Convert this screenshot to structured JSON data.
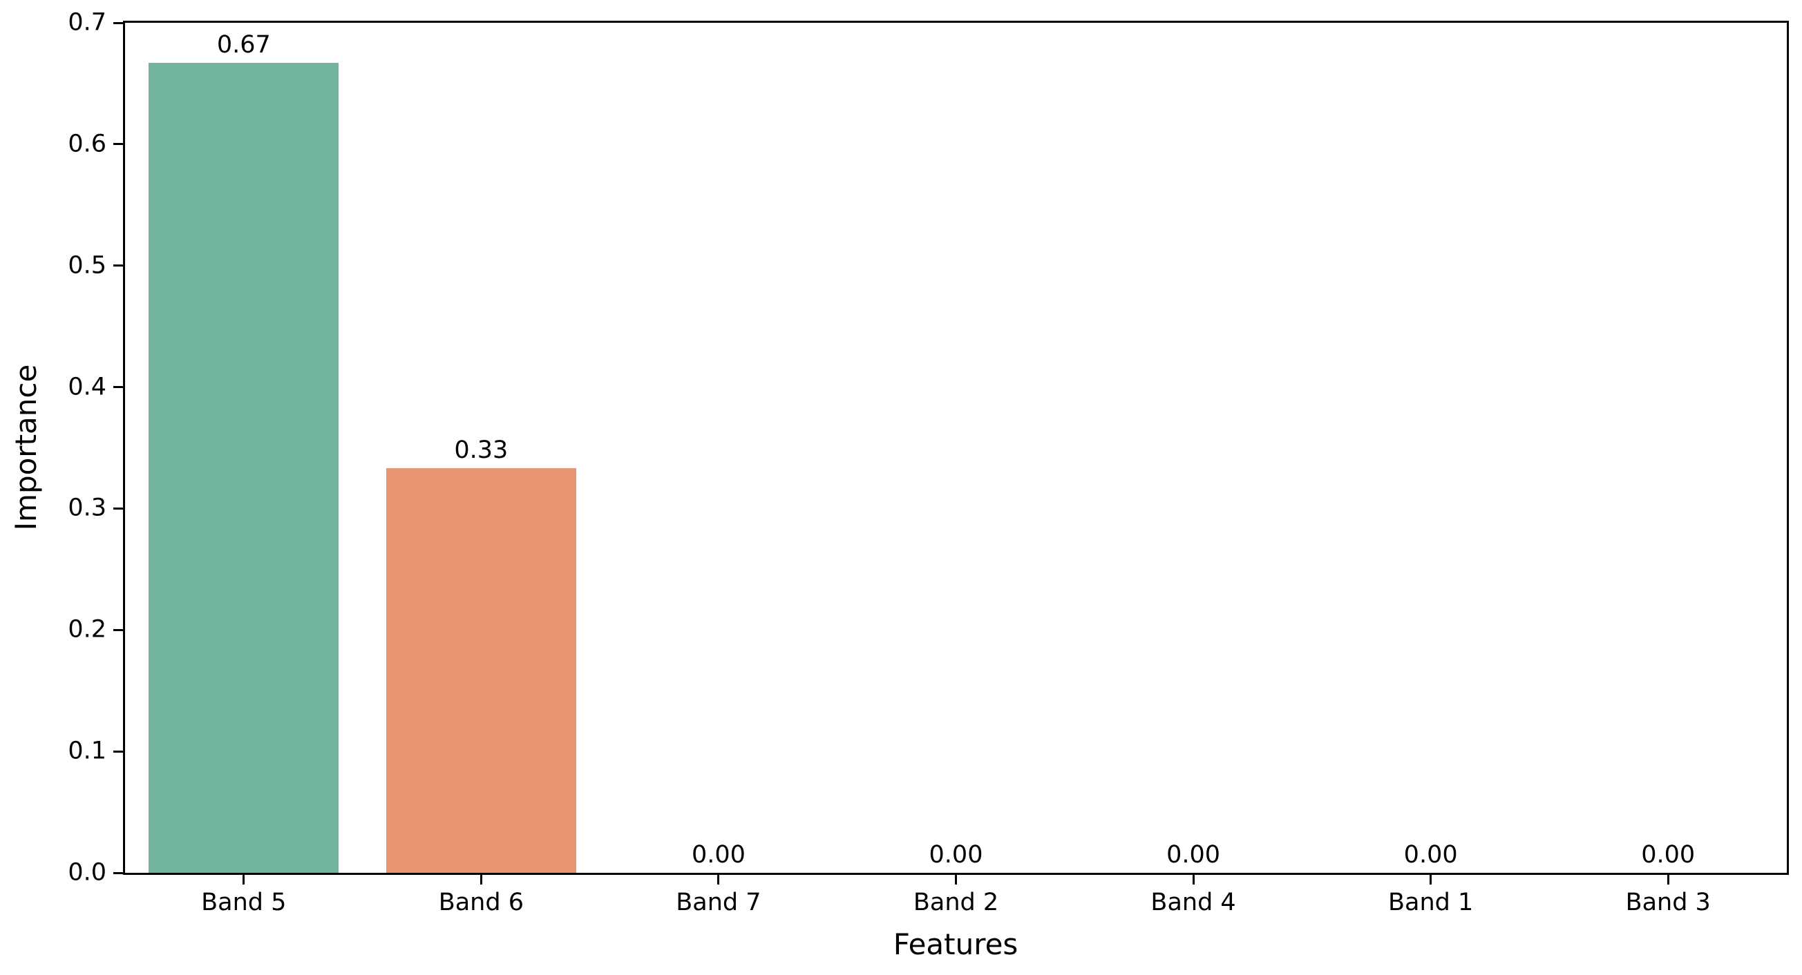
{
  "chart_data": {
    "type": "bar",
    "title": "",
    "xlabel": "Features",
    "ylabel": "Importance",
    "categories": [
      "Band 5",
      "Band 6",
      "Band 7",
      "Band 2",
      "Band 4",
      "Band 1",
      "Band 3"
    ],
    "values": [
      0.667,
      0.333,
      0.0,
      0.0,
      0.0,
      0.0,
      0.0
    ],
    "value_labels": [
      "0.67",
      "0.33",
      "0.00",
      "0.00",
      "0.00",
      "0.00",
      "0.00"
    ],
    "bar_colors": [
      "#73b4a1",
      "#e89573",
      null,
      null,
      null,
      null,
      null
    ],
    "ylim": [
      0.0,
      0.7
    ],
    "yticks": [
      0.0,
      0.1,
      0.2,
      0.3,
      0.4,
      0.5,
      0.6,
      0.7
    ],
    "ytick_labels": [
      "0.0",
      "0.1",
      "0.2",
      "0.3",
      "0.4",
      "0.5",
      "0.6",
      "0.7"
    ],
    "layout": {
      "grid": false,
      "legend": null,
      "background_color": "#ffffff",
      "spine_color": "#000000",
      "bar_width_fraction": 0.8
    }
  }
}
